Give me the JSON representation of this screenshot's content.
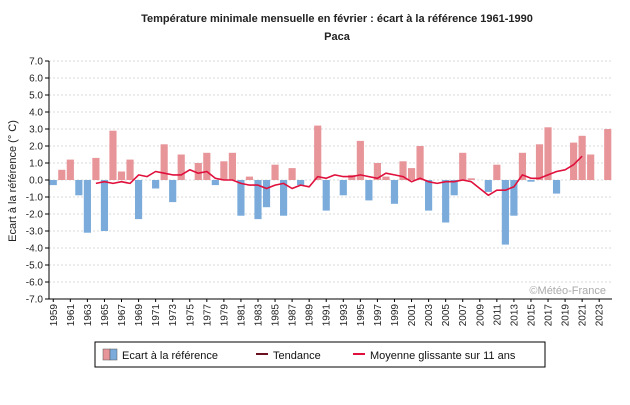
{
  "chart_data": {
    "type": "bar",
    "title": "Température minimale mensuelle en février : écart à la référence 1961-1990",
    "subtitle": "Paca",
    "ylabel": "Ecart à la référence (° C)",
    "xlabel": "",
    "ylim": [
      -7.0,
      7.0
    ],
    "yticks": [
      "7.0",
      "6.0",
      "5.0",
      "4.0",
      "3.0",
      "2.0",
      "1.0",
      "0.0",
      "-1.0",
      "-2.0",
      "-3.0",
      "-4.0",
      "-5.0",
      "-6.0",
      "-7.0"
    ],
    "xticks": [
      "1959",
      "1961",
      "1963",
      "1965",
      "1967",
      "1969",
      "1971",
      "1973",
      "1975",
      "1977",
      "1979",
      "1981",
      "1983",
      "1985",
      "1987",
      "1989",
      "1991",
      "1993",
      "1995",
      "1997",
      "1999",
      "2001",
      "2003",
      "2005",
      "2007",
      "2009",
      "2011",
      "2013",
      "2015",
      "2017",
      "2019",
      "2021",
      "2023"
    ],
    "years": [
      1959,
      1960,
      1961,
      1962,
      1963,
      1964,
      1965,
      1966,
      1967,
      1968,
      1969,
      1970,
      1971,
      1972,
      1973,
      1974,
      1975,
      1976,
      1977,
      1978,
      1979,
      1980,
      1981,
      1982,
      1983,
      1984,
      1985,
      1986,
      1987,
      1988,
      1989,
      1990,
      1991,
      1992,
      1993,
      1994,
      1995,
      1996,
      1997,
      1998,
      1999,
      2000,
      2001,
      2002,
      2003,
      2004,
      2005,
      2006,
      2007,
      2008,
      2009,
      2010,
      2011,
      2012,
      2013,
      2014,
      2015,
      2016,
      2017,
      2018,
      2019,
      2020,
      2021,
      2022,
      2023,
      2024
    ],
    "series": [
      {
        "name": "Ecart à la référence",
        "kind": "bar",
        "positive_color": "#e8959a",
        "negative_color": "#7aabdb",
        "values": [
          -0.3,
          0.6,
          1.2,
          -0.9,
          -3.1,
          1.3,
          -3.0,
          2.9,
          0.5,
          1.2,
          -2.3,
          0.0,
          -0.5,
          2.1,
          -1.3,
          1.5,
          0.0,
          1.0,
          1.6,
          -0.3,
          1.1,
          1.6,
          -2.1,
          0.2,
          -2.3,
          -1.6,
          0.9,
          -2.1,
          0.7,
          -0.3,
          0.0,
          3.2,
          -1.8,
          0.0,
          -0.9,
          0.3,
          2.3,
          -1.2,
          1.0,
          0.2,
          -1.4,
          1.1,
          0.7,
          2.0,
          -1.8,
          0.0,
          -2.5,
          -0.9,
          1.6,
          0.1,
          0.0,
          -0.7,
          0.9,
          -3.8,
          -2.1,
          1.6,
          -0.1,
          2.1,
          3.1,
          -0.8,
          0.0,
          2.2,
          2.6,
          1.5,
          0.0,
          3.0
        ]
      },
      {
        "name": "Tendance",
        "kind": "line",
        "color": "#6b1020",
        "values": []
      },
      {
        "name": "Moyenne glissante sur 11 ans",
        "kind": "line",
        "color": "#e0103c",
        "start_year": 1964,
        "values": [
          -0.2,
          -0.1,
          -0.2,
          -0.1,
          -0.2,
          0.3,
          0.2,
          0.5,
          0.4,
          0.3,
          0.3,
          0.6,
          0.4,
          0.5,
          0.1,
          0.0,
          0.0,
          -0.2,
          -0.3,
          -0.3,
          -0.5,
          -0.3,
          -0.2,
          -0.5,
          -0.3,
          -0.4,
          0.2,
          0.1,
          0.3,
          0.2,
          0.2,
          0.3,
          0.2,
          0.1,
          0.4,
          0.3,
          0.2,
          -0.1,
          0.1,
          -0.1,
          -0.2,
          -0.1,
          -0.1,
          0.0,
          -0.1,
          -0.5,
          -0.9,
          -0.6,
          -0.6,
          -0.4,
          0.3,
          0.1,
          0.1,
          0.3,
          0.5,
          0.6,
          0.9,
          1.4
        ]
      }
    ],
    "legend": {
      "placement": "bottom",
      "items": [
        {
          "label": "Ecart à la référence",
          "swatch": "bar"
        },
        {
          "label": "Tendance",
          "swatch": "line"
        },
        {
          "label": "Moyenne glissante sur 11 ans",
          "swatch": "line"
        }
      ]
    },
    "grid": true,
    "watermark": "©Météo-France"
  }
}
